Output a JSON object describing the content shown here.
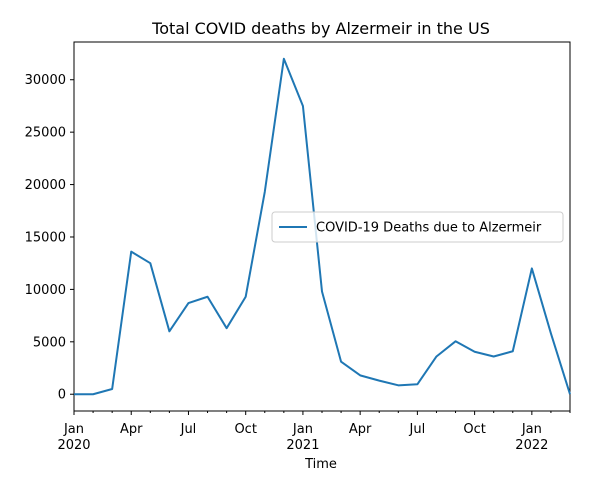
{
  "chart_data": {
    "type": "line",
    "title": "Total COVID deaths by Alzermeir in the US",
    "xlabel": "Time",
    "ylabel": "",
    "x": [
      "2020-01",
      "2020-02",
      "2020-03",
      "2020-04",
      "2020-05",
      "2020-06",
      "2020-07",
      "2020-08",
      "2020-09",
      "2020-10",
      "2020-11",
      "2020-12",
      "2021-01",
      "2021-02",
      "2021-03",
      "2021-04",
      "2021-05",
      "2021-06",
      "2021-07",
      "2021-08",
      "2021-09",
      "2021-10",
      "2021-11",
      "2021-12",
      "2022-01",
      "2022-02",
      "2022-03"
    ],
    "series": [
      {
        "name": "COVID-19 Deaths due to Alzermeir",
        "color": "#1f77b4",
        "values": [
          0,
          0,
          500,
          13600,
          12500,
          6000,
          8700,
          9300,
          6300,
          9300,
          19300,
          32000,
          27500,
          9800,
          3100,
          1800,
          1300,
          850,
          950,
          3600,
          5050,
          4050,
          3600,
          4100,
          12000,
          5800,
          0
        ]
      }
    ],
    "ylim": [
      -1600,
      33600
    ],
    "y_ticks": [
      "0",
      "5000",
      "10000",
      "15000",
      "20000",
      "25000",
      "30000"
    ],
    "x_major_ticks": [
      {
        "month": "Jan",
        "year": "2020",
        "index": 0
      },
      {
        "month": "Apr",
        "year": "",
        "index": 3
      },
      {
        "month": "Jul",
        "year": "",
        "index": 6
      },
      {
        "month": "Oct",
        "year": "",
        "index": 9
      },
      {
        "month": "Jan",
        "year": "2021",
        "index": 12
      },
      {
        "month": "Apr",
        "year": "",
        "index": 15
      },
      {
        "month": "Jul",
        "year": "",
        "index": 18
      },
      {
        "month": "Oct",
        "year": "",
        "index": 21
      },
      {
        "month": "Jan",
        "year": "2022",
        "index": 24
      }
    ],
    "legend_position": "center-right",
    "grid": false
  }
}
